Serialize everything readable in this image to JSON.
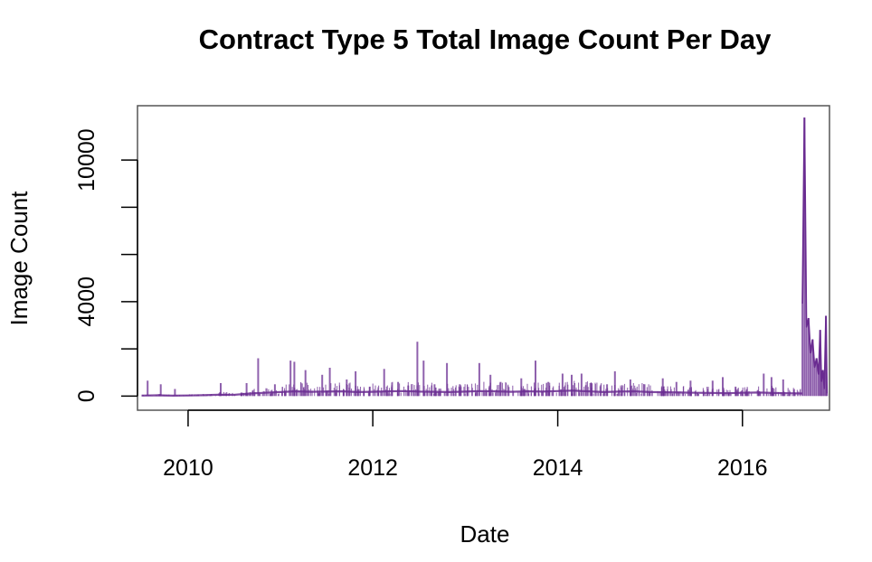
{
  "chart_data": {
    "type": "line",
    "title": "Contract Type 5 Total Image Count Per Day",
    "xlabel": "Date",
    "ylabel": "Image Count",
    "line_color": "#6a2c91",
    "x_ticks": [
      "2010",
      "2012",
      "2014",
      "2016"
    ],
    "y_ticks": [
      "0",
      "4000",
      "10000"
    ],
    "y_tick_values": [
      0,
      4000,
      10000
    ],
    "y_minor_ticks": [
      2000,
      6000,
      8000
    ],
    "xlim": [
      "2009-06-15",
      "2016-12-10"
    ],
    "ylim": [
      -600,
      12300
    ],
    "series": [
      {
        "baseline_points": [
          [
            "2009-07-01",
            20
          ],
          [
            "2009-09-01",
            30
          ],
          [
            "2009-11-01",
            15
          ],
          [
            "2010-01-01",
            25
          ],
          [
            "2010-03-01",
            35
          ],
          [
            "2010-05-01",
            60
          ],
          [
            "2010-07-01",
            50
          ],
          [
            "2010-09-01",
            110
          ],
          [
            "2010-11-01",
            140
          ],
          [
            "2011-01-01",
            170
          ],
          [
            "2011-03-01",
            200
          ],
          [
            "2011-05-01",
            180
          ],
          [
            "2011-07-01",
            190
          ],
          [
            "2011-09-01",
            200
          ],
          [
            "2011-11-01",
            170
          ],
          [
            "2012-01-01",
            180
          ],
          [
            "2012-03-01",
            200
          ],
          [
            "2012-05-01",
            210
          ],
          [
            "2012-07-01",
            190
          ],
          [
            "2012-09-01",
            180
          ],
          [
            "2012-11-01",
            170
          ],
          [
            "2013-01-01",
            190
          ],
          [
            "2013-03-01",
            210
          ],
          [
            "2013-05-01",
            200
          ],
          [
            "2013-07-01",
            180
          ],
          [
            "2013-09-01",
            200
          ],
          [
            "2013-11-01",
            190
          ],
          [
            "2014-01-01",
            210
          ],
          [
            "2014-03-01",
            230
          ],
          [
            "2014-05-01",
            200
          ],
          [
            "2014-07-01",
            170
          ],
          [
            "2014-09-01",
            190
          ],
          [
            "2014-11-01",
            200
          ],
          [
            "2015-01-01",
            170
          ],
          [
            "2015-03-01",
            160
          ],
          [
            "2015-05-01",
            150
          ],
          [
            "2015-07-01",
            140
          ],
          [
            "2015-09-01",
            130
          ],
          [
            "2015-11-01",
            120
          ],
          [
            "2016-01-01",
            140
          ],
          [
            "2016-03-01",
            150
          ],
          [
            "2016-05-01",
            130
          ],
          [
            "2016-07-01",
            120
          ],
          [
            "2016-08-25",
            110
          ]
        ],
        "spikes": [
          [
            "2009-07-25",
            650
          ],
          [
            "2009-09-15",
            500
          ],
          [
            "2009-11-10",
            300
          ],
          [
            "2010-05-10",
            550
          ],
          [
            "2010-08-20",
            550
          ],
          [
            "2010-10-05",
            1600
          ],
          [
            "2010-12-10",
            500
          ],
          [
            "2011-02-10",
            1500
          ],
          [
            "2011-02-25",
            1450
          ],
          [
            "2011-04-10",
            1100
          ],
          [
            "2011-06-15",
            900
          ],
          [
            "2011-07-15",
            1200
          ],
          [
            "2011-09-20",
            700
          ],
          [
            "2011-10-25",
            1050
          ],
          [
            "2011-12-20",
            400
          ],
          [
            "2012-02-15",
            1150
          ],
          [
            "2012-04-10",
            600
          ],
          [
            "2012-05-20",
            450
          ],
          [
            "2012-06-25",
            2300
          ],
          [
            "2012-07-20",
            1500
          ],
          [
            "2012-09-01",
            500
          ],
          [
            "2012-10-20",
            1400
          ],
          [
            "2012-12-10",
            500
          ],
          [
            "2013-02-25",
            1400
          ],
          [
            "2013-04-10",
            900
          ],
          [
            "2013-05-20",
            600
          ],
          [
            "2013-08-10",
            750
          ],
          [
            "2013-10-05",
            1500
          ],
          [
            "2013-11-25",
            600
          ],
          [
            "2014-01-20",
            950
          ],
          [
            "2014-02-25",
            900
          ],
          [
            "2014-04-05",
            950
          ],
          [
            "2014-05-10",
            550
          ],
          [
            "2014-07-15",
            500
          ],
          [
            "2014-08-15",
            1050
          ],
          [
            "2014-10-15",
            700
          ],
          [
            "2014-12-10",
            500
          ],
          [
            "2015-02-20",
            750
          ],
          [
            "2015-04-15",
            600
          ],
          [
            "2015-06-10",
            650
          ],
          [
            "2015-09-05",
            650
          ],
          [
            "2015-10-15",
            800
          ],
          [
            "2015-12-05",
            400
          ],
          [
            "2016-03-25",
            950
          ],
          [
            "2016-04-25",
            800
          ],
          [
            "2016-06-10",
            700
          ],
          [
            "2016-08-25",
            3900
          ],
          [
            "2016-09-02",
            11800
          ],
          [
            "2016-09-10",
            2900
          ],
          [
            "2016-09-18",
            3300
          ],
          [
            "2016-09-26",
            1800
          ],
          [
            "2016-10-04",
            2400
          ],
          [
            "2016-10-12",
            1200
          ],
          [
            "2016-10-20",
            1600
          ],
          [
            "2016-10-28",
            900
          ],
          [
            "2016-11-03",
            2800
          ],
          [
            "2016-11-08",
            600
          ],
          [
            "2016-11-14",
            1100
          ],
          [
            "2016-11-20",
            300
          ],
          [
            "2016-11-26",
            3400
          ],
          [
            "2016-11-30",
            100
          ]
        ]
      }
    ]
  }
}
